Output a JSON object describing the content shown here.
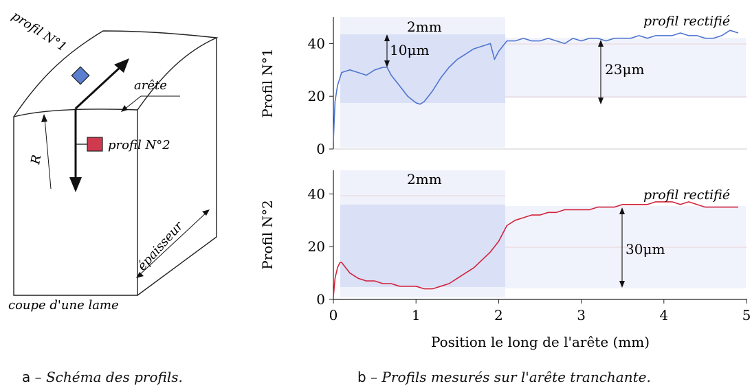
{
  "schema": {
    "label_profil1": "profil N°1",
    "label_arete": "arête",
    "label_profil2": "profil N°2",
    "label_R": "R",
    "label_epaisseur": "épaisseur",
    "label_coupe": "coupe d'une lame",
    "caption_letter": "a",
    "caption_text": "– Schéma des profils.",
    "colors": {
      "profil1_marker": "#5b7fcf",
      "profil2_marker": "#cf3a4f"
    }
  },
  "plots": {
    "caption_letter": "b",
    "caption_text": "– Profils mesurés sur l'arête tranchante.",
    "xlabel": "Position le long de l'arête (mm)",
    "panel1": {
      "ylabel": "Profil N°1",
      "region_label": "2mm",
      "depth_label": "10μm",
      "height_label": "23μm",
      "rectified_label": "profil rectifié",
      "color": "#4f75cf"
    },
    "panel2": {
      "ylabel": "Profil N°2",
      "region_label": "2mm",
      "height_label": "30μm",
      "rectified_label": "profil rectifié",
      "color": "#d2233d"
    }
  },
  "chart_data": [
    {
      "type": "line",
      "xlabel": "",
      "ylabel": "Profil N°1",
      "xlim": [
        0,
        5
      ],
      "ylim": [
        0,
        50
      ],
      "yticks": [
        0,
        20,
        40
      ],
      "series": [
        {
          "x": [
            0,
            0.02,
            0.05,
            0.08,
            0.1,
            0.2,
            0.3,
            0.4,
            0.5,
            0.6,
            0.65,
            0.7,
            0.8,
            0.9,
            1.0,
            1.05,
            1.1,
            1.2,
            1.3,
            1.4,
            1.5,
            1.6,
            1.7,
            1.8,
            1.9,
            1.95,
            2.0,
            2.1,
            2.2,
            2.3,
            2.4,
            2.5,
            2.6,
            2.7,
            2.8,
            2.9,
            3.0,
            3.1,
            3.2,
            3.3,
            3.4,
            3.5,
            3.6,
            3.7,
            3.8,
            3.9,
            4.0,
            4.1,
            4.2,
            4.3,
            4.4,
            4.5,
            4.6,
            4.7,
            4.8,
            4.9
          ],
          "y": [
            3,
            18,
            24,
            27,
            29,
            30,
            29,
            28,
            30,
            31,
            31,
            28,
            24,
            20,
            17.5,
            17,
            18,
            22,
            27,
            31,
            34,
            36,
            38,
            39,
            40,
            34,
            37,
            41,
            41,
            42,
            41,
            41,
            42,
            41,
            40,
            42,
            41,
            42,
            42,
            41,
            42,
            42,
            42,
            43,
            42,
            43,
            43,
            43,
            44,
            43,
            43,
            42,
            42,
            43,
            45,
            44
          ]
        }
      ],
      "annotations": [
        "2mm",
        "10μm",
        "23μm",
        "profil rectifié"
      ]
    },
    {
      "type": "line",
      "xlabel": "Position le long de l'arête (mm)",
      "ylabel": "Profil N°2",
      "xlim": [
        0,
        5
      ],
      "ylim": [
        0,
        50
      ],
      "xticks": [
        0,
        1,
        2,
        3,
        4,
        5
      ],
      "yticks": [
        0,
        20,
        40
      ],
      "series": [
        {
          "x": [
            0,
            0.02,
            0.05,
            0.08,
            0.1,
            0.15,
            0.2,
            0.3,
            0.4,
            0.5,
            0.6,
            0.7,
            0.8,
            0.9,
            1.0,
            1.1,
            1.2,
            1.3,
            1.4,
            1.5,
            1.6,
            1.7,
            1.8,
            1.9,
            2.0,
            2.1,
            2.2,
            2.3,
            2.4,
            2.5,
            2.6,
            2.7,
            2.8,
            2.9,
            3.0,
            3.1,
            3.2,
            3.3,
            3.4,
            3.5,
            3.6,
            3.7,
            3.8,
            3.9,
            4.0,
            4.1,
            4.2,
            4.3,
            4.4,
            4.5,
            4.6,
            4.7,
            4.8,
            4.9
          ],
          "y": [
            1,
            8,
            12,
            14,
            14,
            12,
            10,
            8,
            7,
            7,
            6,
            6,
            5,
            5,
            5,
            4,
            4,
            5,
            6,
            8,
            10,
            12,
            15,
            18,
            22,
            28,
            30,
            31,
            32,
            32,
            33,
            33,
            34,
            34,
            34,
            34,
            35,
            35,
            35,
            36,
            36,
            36,
            36,
            37,
            37,
            37,
            36,
            37,
            36,
            35,
            35,
            35,
            35,
            35
          ]
        }
      ],
      "annotations": [
        "2mm",
        "30μm",
        "profil rectifié"
      ]
    }
  ]
}
